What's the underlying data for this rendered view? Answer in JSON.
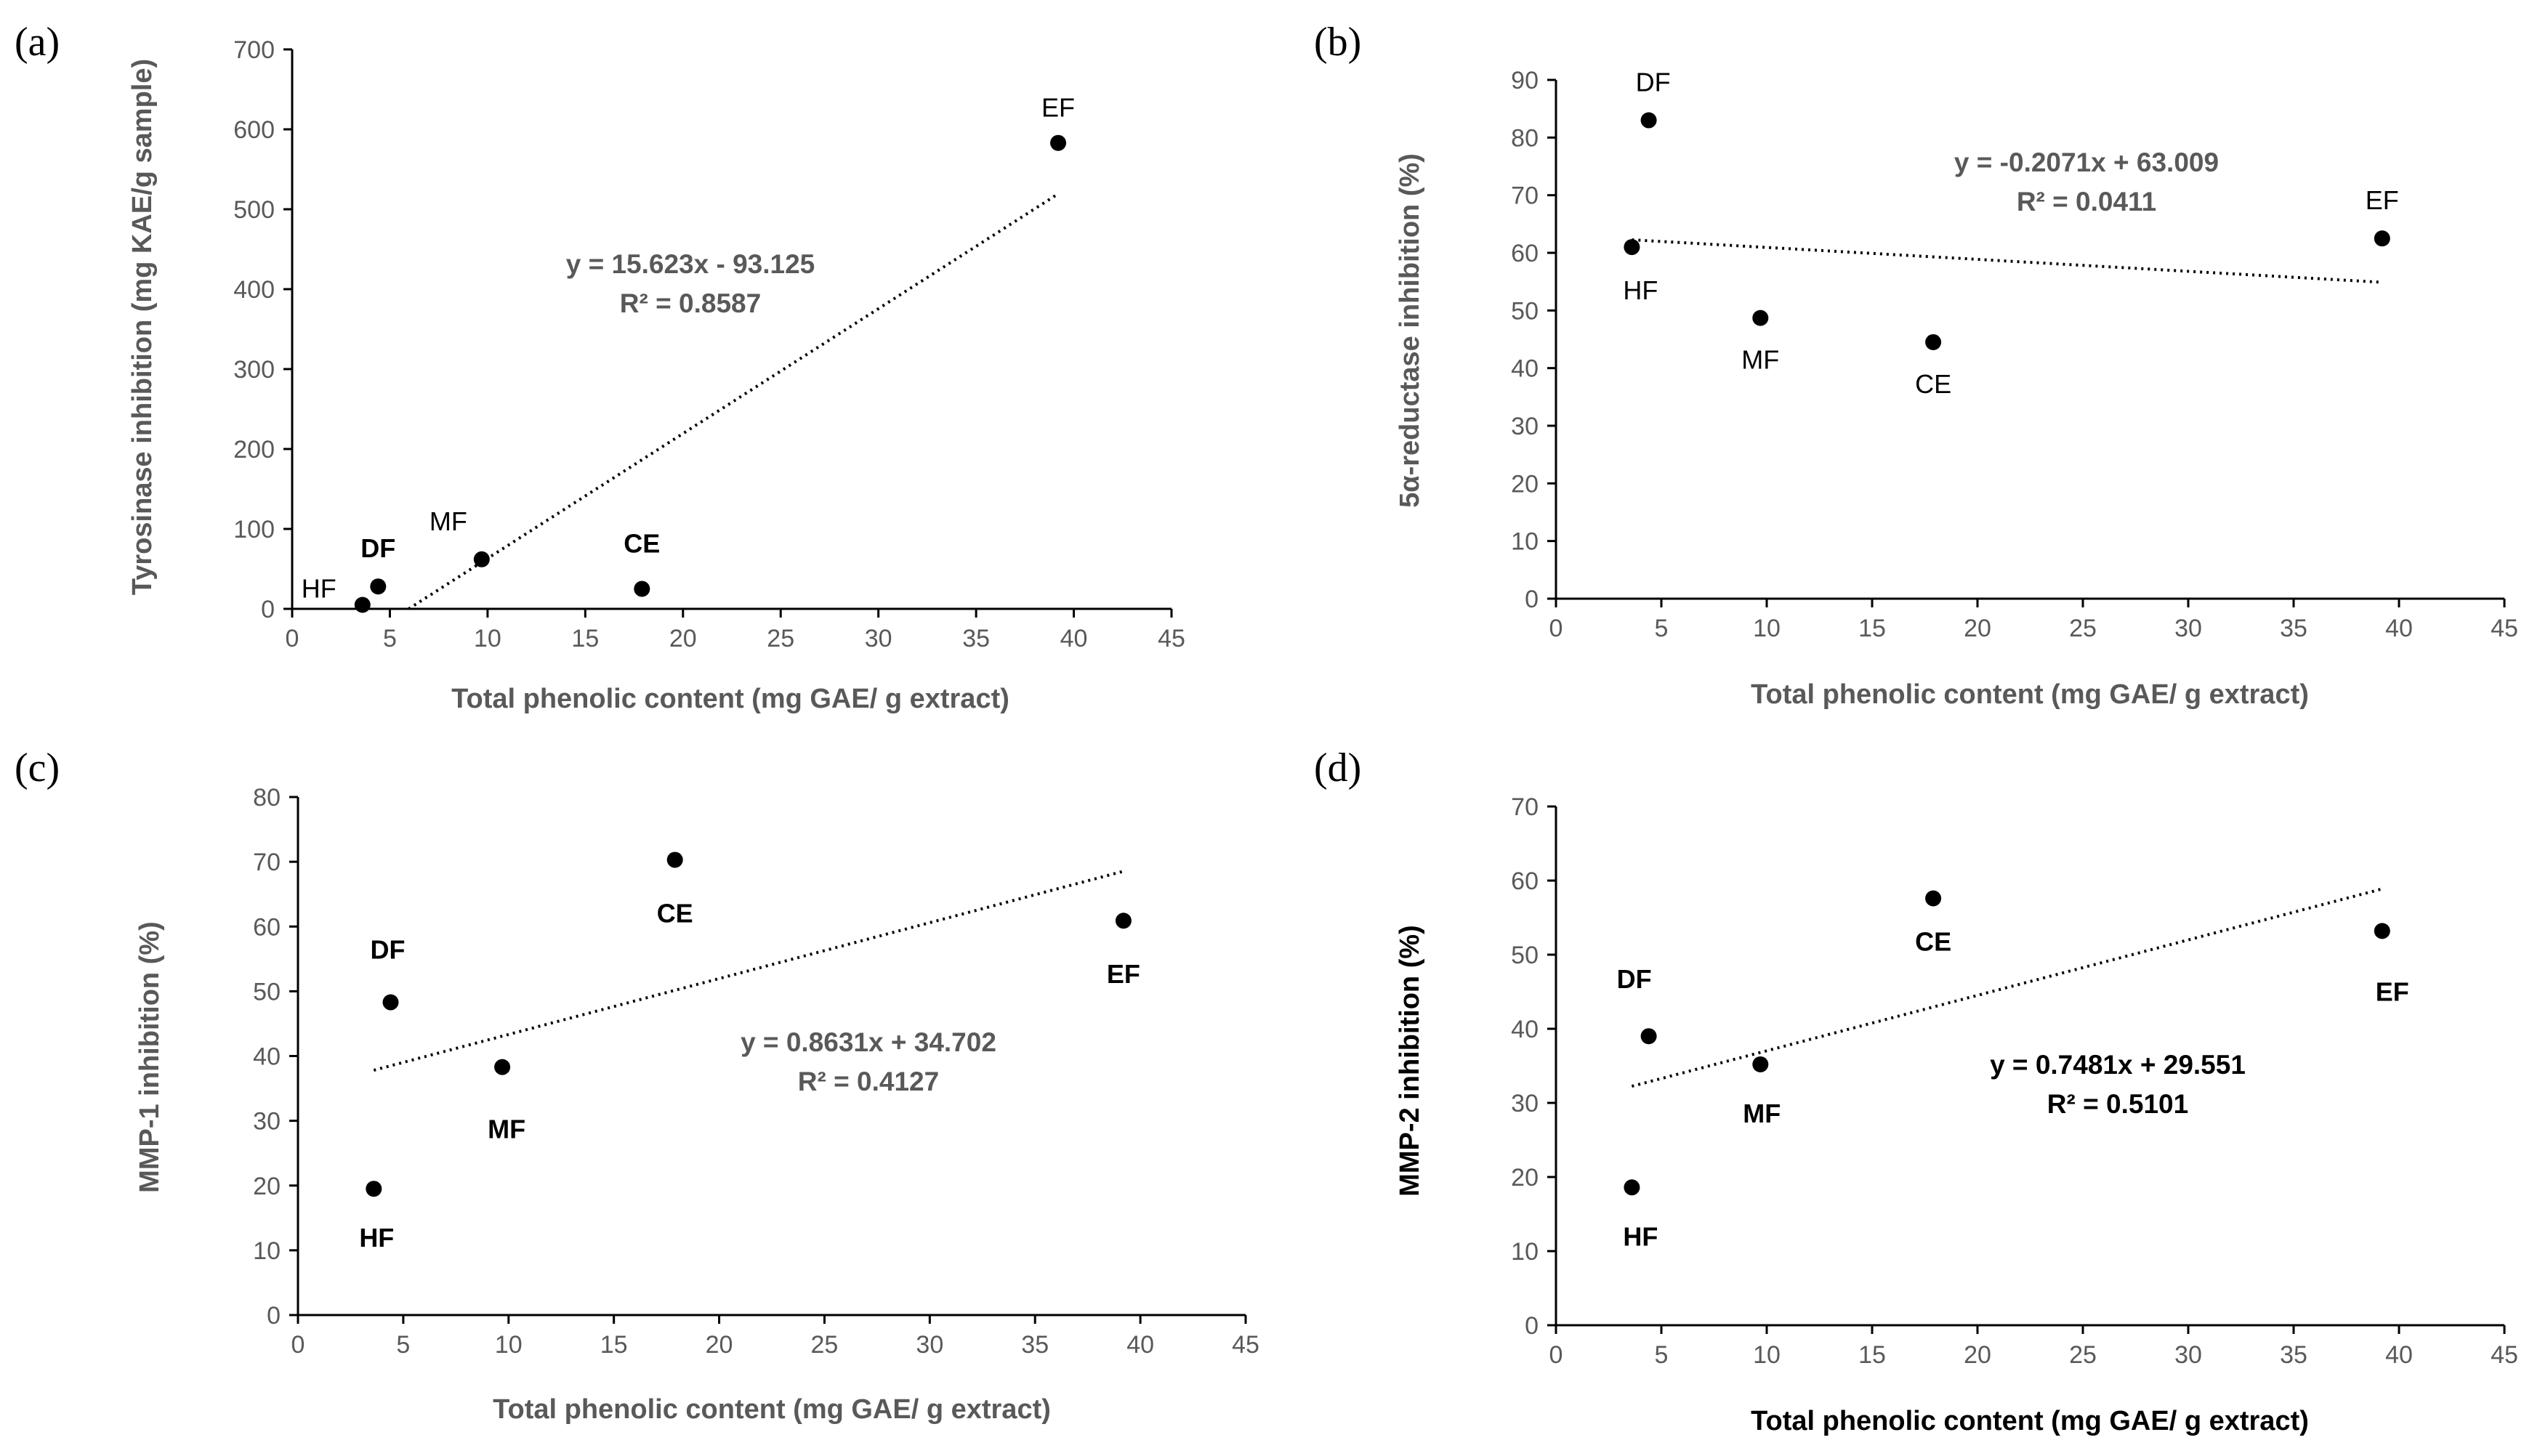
{
  "chart_data": [
    {
      "type": "scatter",
      "panel": "(a)",
      "xlabel": "Total phenolic content (mg GAE/ g extract)",
      "ylabel": "Tyrosinase inhibition (mg KAE/g sample)",
      "xlim": [
        0,
        45
      ],
      "ylim": [
        0,
        700
      ],
      "x_ticks": [
        "0",
        "5",
        "10",
        "15",
        "20",
        "25",
        "30",
        "35",
        "40",
        "45"
      ],
      "y_ticks": [
        "0",
        "100",
        "200",
        "300",
        "400",
        "500",
        "600",
        "700"
      ],
      "points": [
        {
          "label": "HF",
          "x": 3.6,
          "y": 5
        },
        {
          "label": "DF",
          "x": 4.4,
          "y": 28
        },
        {
          "label": "MF",
          "x": 9.7,
          "y": 62
        },
        {
          "label": "CE",
          "x": 17.9,
          "y": 25
        },
        {
          "label": "EF",
          "x": 39.2,
          "y": 583
        }
      ],
      "trendline": {
        "slope": 15.623,
        "intercept": -93.125,
        "x_range": [
          5.96,
          39.2
        ]
      },
      "equation": "y = 15.623x - 93.125",
      "r2": "R² = 0.8587"
    },
    {
      "type": "scatter",
      "panel": "(b)",
      "xlabel": "Total phenolic content (mg GAE/ g extract)",
      "ylabel": "5α-reductase inhibition (%)",
      "xlim": [
        0,
        45
      ],
      "ylim": [
        0,
        90
      ],
      "x_ticks": [
        "0",
        "5",
        "10",
        "15",
        "20",
        "25",
        "30",
        "35",
        "40",
        "45"
      ],
      "y_ticks": [
        "0",
        "10",
        "20",
        "30",
        "40",
        "50",
        "60",
        "70",
        "80",
        "90"
      ],
      "points": [
        {
          "label": "HF",
          "x": 3.6,
          "y": 61
        },
        {
          "label": "DF",
          "x": 4.4,
          "y": 83
        },
        {
          "label": "MF",
          "x": 9.7,
          "y": 48.7
        },
        {
          "label": "CE",
          "x": 17.9,
          "y": 44.5
        },
        {
          "label": "EF",
          "x": 39.2,
          "y": 62.5
        }
      ],
      "trendline": {
        "slope": -0.2071,
        "intercept": 63.009,
        "x_range": [
          3.6,
          39.2
        ]
      },
      "equation": "y = -0.2071x + 63.009",
      "r2": "R² = 0.0411"
    },
    {
      "type": "scatter",
      "panel": "(c)",
      "xlabel": "Total phenolic content (mg GAE/ g extract)",
      "ylabel": "MMP-1 inhibition (%)",
      "xlim": [
        0,
        45
      ],
      "ylim": [
        0,
        80
      ],
      "x_ticks": [
        "0",
        "5",
        "10",
        "15",
        "20",
        "25",
        "30",
        "35",
        "40",
        "45"
      ],
      "y_ticks": [
        "0",
        "10",
        "20",
        "30",
        "40",
        "50",
        "60",
        "70",
        "80"
      ],
      "points": [
        {
          "label": "HF",
          "x": 3.6,
          "y": 19.5
        },
        {
          "label": "DF",
          "x": 4.4,
          "y": 48.3
        },
        {
          "label": "MF",
          "x": 9.7,
          "y": 38.3
        },
        {
          "label": "CE",
          "x": 17.9,
          "y": 70.3
        },
        {
          "label": "EF",
          "x": 39.2,
          "y": 60.9
        }
      ],
      "trendline": {
        "slope": 0.8631,
        "intercept": 34.702,
        "x_range": [
          3.6,
          39.2
        ]
      },
      "equation": "y = 0.8631x + 34.702",
      "r2": "R² = 0.4127"
    },
    {
      "type": "scatter",
      "panel": "(d)",
      "xlabel": "Total phenolic content (mg GAE/ g extract)",
      "ylabel": "MMP-2 inhibition (%)",
      "xlim": [
        0,
        45
      ],
      "ylim": [
        0,
        70
      ],
      "x_ticks": [
        "0",
        "5",
        "10",
        "15",
        "20",
        "25",
        "30",
        "35",
        "40",
        "45"
      ],
      "y_ticks": [
        "0",
        "10",
        "20",
        "30",
        "40",
        "50",
        "60",
        "70"
      ],
      "points": [
        {
          "label": "HF",
          "x": 3.6,
          "y": 18.6
        },
        {
          "label": "DF",
          "x": 4.4,
          "y": 39
        },
        {
          "label": "MF",
          "x": 9.7,
          "y": 35.2
        },
        {
          "label": "CE",
          "x": 17.9,
          "y": 57.6
        },
        {
          "label": "EF",
          "x": 39.2,
          "y": 53.2
        }
      ],
      "trendline": {
        "slope": 0.7481,
        "intercept": 29.551,
        "x_range": [
          3.6,
          39.2
        ]
      },
      "equation": "y = 0.7481x + 29.551",
      "r2": "R² = 0.5101"
    }
  ]
}
